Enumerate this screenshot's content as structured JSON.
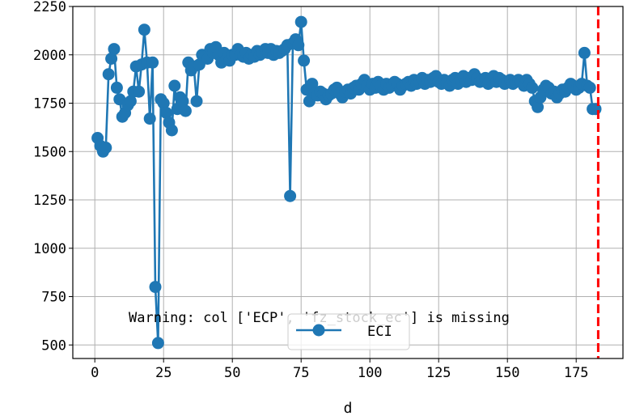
{
  "chart_data": {
    "type": "line",
    "xlabel": "d",
    "ylabel": "",
    "xlim": [
      -8,
      192
    ],
    "ylim": [
      430,
      2250
    ],
    "xticks": [
      0,
      25,
      50,
      75,
      100,
      125,
      150,
      175
    ],
    "yticks": [
      500,
      750,
      1000,
      1250,
      1500,
      1750,
      2000,
      2250
    ],
    "xtick_labels": [
      "0",
      "25",
      "50",
      "75",
      "100",
      "125",
      "150",
      "175"
    ],
    "ytick_labels": [
      "500",
      "750",
      "1000",
      "1250",
      "1500",
      "1750",
      "2000",
      "2250"
    ],
    "grid": true,
    "legend_position": "bottom-center",
    "series": [
      {
        "name": "ECI",
        "color": "#1f77b4",
        "marker": "circle",
        "x": [
          1,
          2,
          3,
          4,
          5,
          6,
          7,
          8,
          9,
          10,
          11,
          12,
          13,
          14,
          15,
          16,
          17,
          18,
          19,
          20,
          21,
          22,
          23,
          24,
          25,
          26,
          27,
          28,
          29,
          30,
          31,
          32,
          33,
          34,
          35,
          36,
          37,
          38,
          39,
          40,
          41,
          42,
          43,
          44,
          45,
          46,
          47,
          48,
          49,
          50,
          51,
          52,
          53,
          54,
          55,
          56,
          57,
          58,
          59,
          60,
          61,
          62,
          63,
          64,
          65,
          66,
          67,
          68,
          69,
          70,
          71,
          72,
          73,
          74,
          75,
          76,
          77,
          78,
          79,
          80,
          81,
          82,
          83,
          84,
          85,
          86,
          87,
          88,
          89,
          90,
          91,
          92,
          93,
          94,
          95,
          96,
          97,
          98,
          99,
          100,
          101,
          102,
          103,
          104,
          105,
          106,
          107,
          108,
          109,
          110,
          111,
          112,
          113,
          114,
          115,
          116,
          117,
          118,
          119,
          120,
          121,
          122,
          123,
          124,
          125,
          126,
          127,
          128,
          129,
          130,
          131,
          132,
          133,
          134,
          135,
          136,
          137,
          138,
          139,
          140,
          141,
          142,
          143,
          144,
          145,
          146,
          147,
          148,
          149,
          150,
          151,
          152,
          153,
          154,
          155,
          156,
          157,
          158,
          159,
          160,
          161,
          162,
          163,
          164,
          165,
          166,
          167,
          168,
          169,
          170,
          171,
          172,
          173,
          174,
          175,
          176,
          177,
          178,
          179,
          180,
          181,
          182
        ],
        "values": [
          1570,
          1530,
          1500,
          1520,
          1900,
          1980,
          2030,
          1830,
          1770,
          1680,
          1700,
          1740,
          1760,
          1810,
          1940,
          1810,
          1950,
          2130,
          1960,
          1670,
          1960,
          800,
          510,
          1770,
          1750,
          1700,
          1650,
          1610,
          1840,
          1720,
          1780,
          1760,
          1710,
          1960,
          1920,
          1940,
          1760,
          1950,
          2000,
          1990,
          1980,
          2030,
          2010,
          2040,
          2000,
          1960,
          2010,
          1980,
          1970,
          2000,
          2000,
          2030,
          2000,
          1990,
          2010,
          1980,
          2000,
          1990,
          2020,
          2000,
          2010,
          2030,
          2010,
          2030,
          2000,
          2020,
          2010,
          2020,
          2030,
          2050,
          1270,
          2060,
          2080,
          2050,
          2170,
          1970,
          1820,
          1760,
          1850,
          1800,
          1790,
          1810,
          1800,
          1770,
          1790,
          1800,
          1820,
          1830,
          1800,
          1780,
          1810,
          1820,
          1800,
          1830,
          1840,
          1820,
          1850,
          1870,
          1840,
          1820,
          1850,
          1830,
          1860,
          1840,
          1820,
          1850,
          1830,
          1840,
          1860,
          1850,
          1820,
          1840,
          1850,
          1860,
          1840,
          1870,
          1850,
          1860,
          1880,
          1850,
          1870,
          1860,
          1880,
          1890,
          1860,
          1850,
          1870,
          1860,
          1840,
          1870,
          1880,
          1850,
          1870,
          1890,
          1860,
          1880,
          1870,
          1900,
          1880,
          1860,
          1870,
          1880,
          1850,
          1870,
          1890,
          1860,
          1880,
          1870,
          1850,
          1860,
          1870,
          1850,
          1860,
          1870,
          1860,
          1840,
          1870,
          1850,
          1830,
          1760,
          1730,
          1780,
          1820,
          1840,
          1830,
          1800,
          1810,
          1780,
          1800,
          1820,
          1810,
          1830,
          1850,
          1840,
          1820,
          1830,
          1850,
          2010,
          1840,
          1830,
          1720,
          1720
        ]
      }
    ],
    "vline": {
      "x": 183,
      "color": "#ff0000",
      "style": "dashed"
    },
    "annotation": "Warning: col ['ECP', 'fz_stock_ec'] is missing"
  }
}
